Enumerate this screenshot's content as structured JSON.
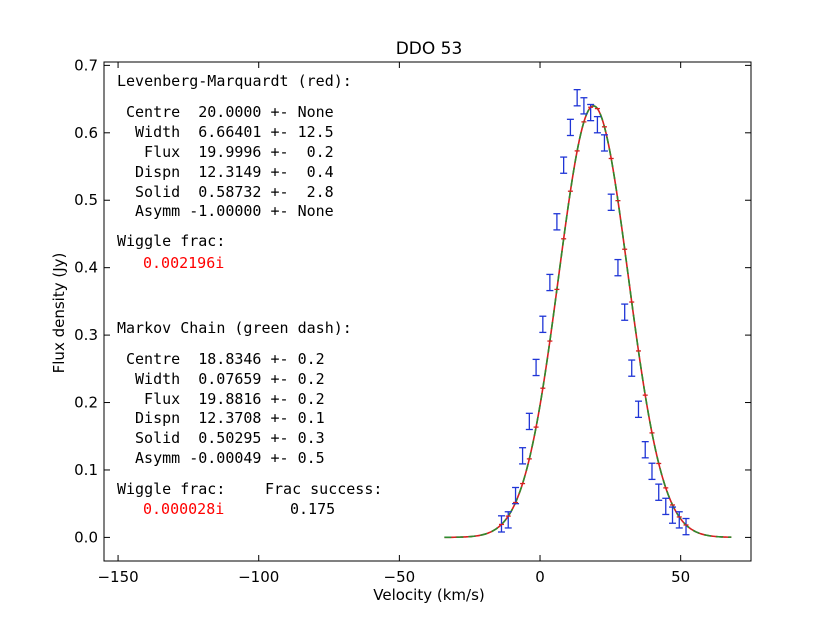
{
  "chart_data": {
    "type": "line",
    "title": "DDO 53",
    "xlabel": "Velocity (km/s)",
    "ylabel": "Flux density (Jy)",
    "xlim": [
      -155,
      75
    ],
    "ylim": [
      -0.035,
      0.705
    ],
    "xticks": [
      -150,
      -100,
      -50,
      0,
      50
    ],
    "xtick_labels": [
      "−150",
      "−100",
      "−50",
      "0",
      "50"
    ],
    "yticks": [
      0.0,
      0.1,
      0.2,
      0.3,
      0.4,
      0.5,
      0.6,
      0.7
    ],
    "ytick_labels": [
      "0.0",
      "0.1",
      "0.2",
      "0.3",
      "0.4",
      "0.5",
      "0.6",
      "0.7"
    ],
    "grid": false,
    "model": {
      "centre": 19.0,
      "sigma": 12.35,
      "peak": 0.64,
      "x_range": [
        -34,
        68
      ],
      "step": 0.5
    },
    "series": [
      {
        "name": "Levenberg-Marquardt fit",
        "style": "solid",
        "color": "#d62020"
      },
      {
        "name": "Markov Chain fit",
        "style": "dashed",
        "color": "#2e8b2e"
      }
    ],
    "observations": {
      "color": "#1f35d6",
      "residual_color": "#d62020",
      "error": 0.012,
      "x": [
        -13.7,
        -11.3,
        -8.7,
        -6.2,
        -3.8,
        -1.4,
        1.0,
        3.5,
        6.0,
        8.4,
        10.8,
        13.2,
        15.6,
        18.0,
        20.4,
        22.9,
        25.3,
        27.7,
        30.1,
        32.6,
        35.0,
        37.4,
        39.8,
        42.2,
        44.7,
        47.1,
        49.5,
        51.9
      ],
      "y": [
        0.02,
        0.026,
        0.062,
        0.121,
        0.172,
        0.252,
        0.316,
        0.378,
        0.468,
        0.552,
        0.608,
        0.652,
        0.64,
        0.63,
        0.612,
        0.585,
        0.497,
        0.4,
        0.334,
        0.251,
        0.19,
        0.13,
        0.098,
        0.067,
        0.046,
        0.033,
        0.026,
        0.016
      ]
    }
  },
  "lm": {
    "heading": "Levenberg-Marquardt (red):",
    "rows": [
      "Centre  20.0000 +- None",
      " Width  6.66401 +- 12.5",
      "  Flux  19.9996 +-  0.2",
      " Dispn  12.3149 +-  0.4",
      " Solid  0.58732 +-  2.8",
      " Asymm -1.00000 +- None"
    ],
    "wiggle_label": "Wiggle frac:",
    "wiggle_value": "0.002196i"
  },
  "mc": {
    "heading": "Markov Chain (green dash):",
    "rows": [
      "Centre  18.8346 +- 0.2",
      " Width  0.07659 +- 0.2",
      "  Flux  19.8816 +- 0.2",
      " Dispn  12.3708 +- 0.1",
      " Solid  0.50295 +- 0.3",
      " Asymm -0.00049 +- 0.5"
    ],
    "wiggle_label": "Wiggle frac:",
    "wiggle_value": "0.000028i",
    "success_label": "Frac success:",
    "success_value": "0.175"
  },
  "colors": {
    "accent": "#ff0000",
    "text": "#000000",
    "axes": "#000000"
  }
}
